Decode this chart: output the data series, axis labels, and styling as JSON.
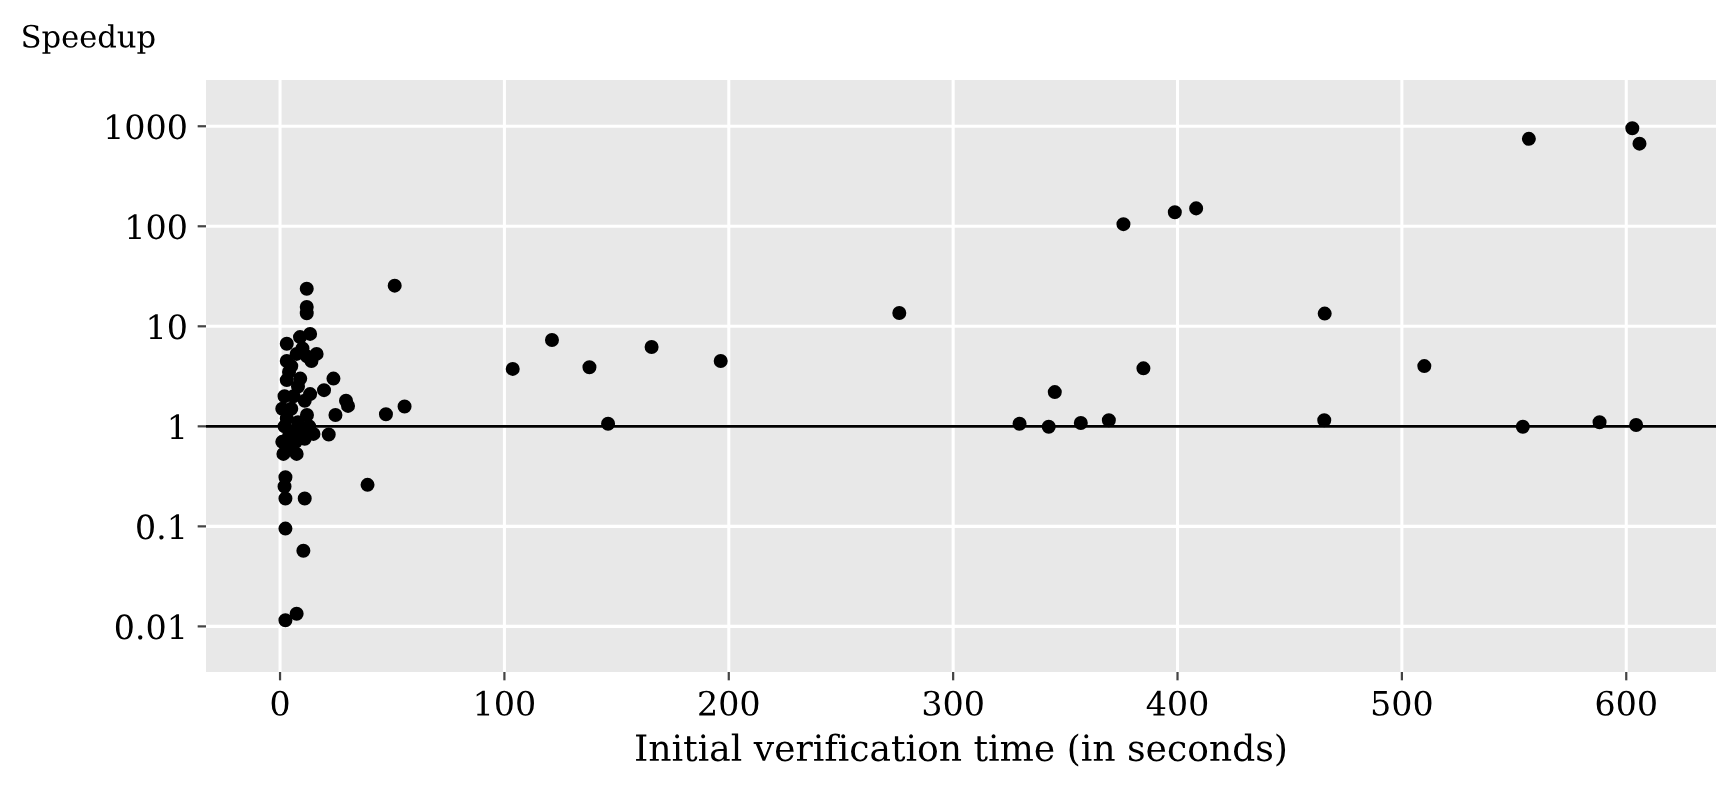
{
  "chart_data": {
    "type": "scatter",
    "title": "Speedup",
    "xlabel": "Initial verification time (in seconds)",
    "x": [
      196.4,
      276,
      329.6,
      342.6,
      345.3,
      356.9,
      369.4,
      375.9,
      384.8,
      398.8,
      408.3,
      465.6,
      465.4,
      510,
      553.9,
      556.6,
      588.1,
      602.7,
      605.9,
      604.4,
      51.1,
      103.7,
      121.2,
      137.9,
      165.6,
      146.2,
      47.2,
      55.5,
      39,
      23.8,
      19.6,
      29.4,
      30.3,
      24.7,
      21.7,
      11,
      10.4,
      2.4,
      2.4,
      7.4,
      2.4,
      2.4,
      2,
      11.9,
      11.9,
      11.9,
      13.4,
      16.3,
      3,
      8.9,
      3,
      7.4,
      13.4,
      7.4,
      1.5,
      14.9,
      2,
      3,
      4,
      5,
      6,
      8,
      10,
      12,
      1,
      3,
      5,
      9,
      11,
      13,
      7,
      2,
      4,
      10,
      12,
      14,
      1,
      6,
      8,
      3,
      11
    ],
    "series": [
      {
        "color": "#000000",
        "values": [
          4.5,
          13.6,
          1.06,
          0.99,
          2.2,
          1.08,
          1.15,
          105,
          3.8,
          138,
          151,
          13.4,
          1.15,
          4.0,
          0.99,
          748,
          1.1,
          955,
          670,
          1.03,
          25.5,
          3.75,
          7.3,
          3.9,
          6.2,
          1.06,
          1.32,
          1.58,
          0.26,
          3.0,
          2.3,
          1.8,
          1.6,
          1.3,
          0.83,
          0.19,
          0.057,
          0.095,
          0.0115,
          0.0134,
          0.31,
          0.19,
          0.25,
          23.7,
          15.6,
          13.5,
          8.4,
          5.3,
          6.7,
          7.8,
          2.9,
          5.3,
          2.1,
          0.53,
          0.53,
          0.84,
          1,
          1.2,
          0.8,
          1.5,
          2,
          1.1,
          0.9,
          1.3,
          0.7,
          0.6,
          4,
          3,
          1.8,
          1,
          0.7,
          2,
          3.5,
          6,
          5,
          4.5,
          1.5,
          0.9,
          2.5,
          4.5,
          0.75
        ]
      }
    ],
    "xlim": [
      -33,
      640
    ],
    "ylim": [
      0.0035,
      2900
    ],
    "log": "y",
    "xticks": [
      0,
      100,
      200,
      300,
      400,
      500,
      600
    ],
    "yticks": [
      {
        "value": 0.01,
        "label": "0.01"
      },
      {
        "value": 0.1,
        "label": "0.1"
      },
      {
        "value": 1,
        "label": "1"
      },
      {
        "value": 10,
        "label": "10"
      },
      {
        "value": 100,
        "label": "100"
      },
      {
        "value": 1000,
        "label": "1000"
      }
    ],
    "ref_lines": [
      {
        "axis": "y",
        "value": 1,
        "color": "#000000",
        "line_style": "solid"
      }
    ],
    "grid": true,
    "marker": "circle"
  }
}
